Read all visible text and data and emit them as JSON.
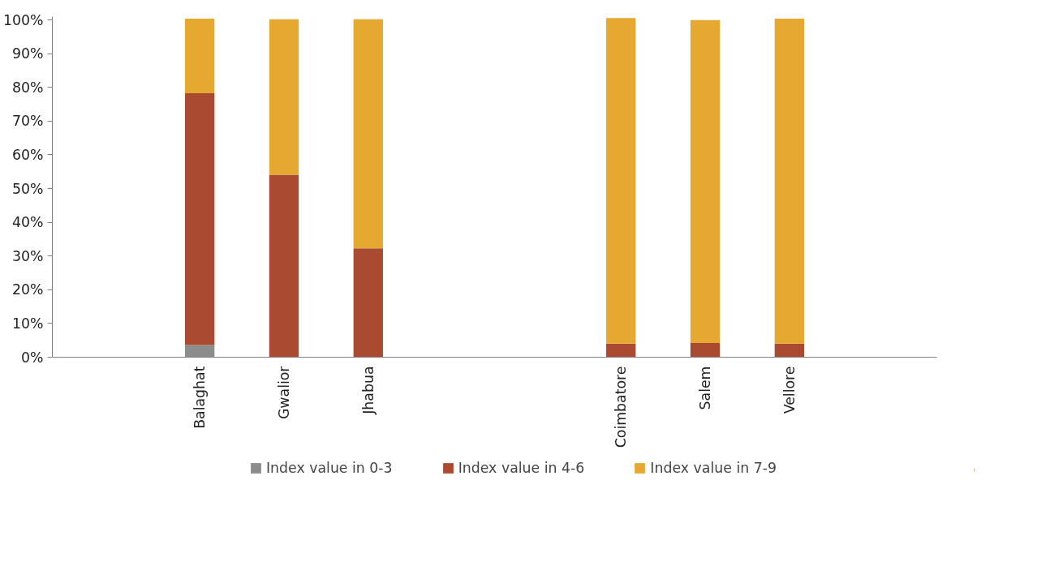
{
  "chart_data": {
    "type": "bar",
    "stacked": true,
    "categories": [
      null,
      null,
      null,
      "Balaghat",
      null,
      "Gwalior",
      null,
      "Jhabua",
      null,
      null,
      null,
      null,
      null,
      "Coimbatore",
      null,
      "Salem",
      null,
      "Vellore",
      null,
      null,
      null
    ],
    "series": [
      {
        "name": "Index value in 0-3",
        "color": "#8c8c8c",
        "values": [
          null,
          null,
          null,
          3.6,
          null,
          0,
          null,
          0,
          null,
          null,
          null,
          null,
          null,
          0,
          null,
          0,
          null,
          0,
          null,
          null,
          null
        ]
      },
      {
        "name": "Index value in 4-6",
        "color": "#a94b31",
        "values": [
          null,
          null,
          null,
          74.7,
          null,
          54.1,
          null,
          32.3,
          null,
          null,
          null,
          null,
          null,
          4.0,
          null,
          4.2,
          null,
          4.0,
          null,
          null,
          null
        ]
      },
      {
        "name": "Index value in 7-9",
        "color": "#e5a831",
        "values": [
          null,
          null,
          null,
          22.1,
          null,
          46.1,
          null,
          67.9,
          null,
          null,
          null,
          null,
          null,
          96.6,
          null,
          95.8,
          null,
          96.4,
          null,
          null,
          null
        ]
      }
    ],
    "ylim": [
      0,
      101
    ],
    "yticks": [
      {
        "value": 0,
        "label": "0%"
      },
      {
        "value": 10,
        "label": "10%"
      },
      {
        "value": 20,
        "label": "20%"
      },
      {
        "value": 30,
        "label": "30%"
      },
      {
        "value": 40,
        "label": "40%"
      },
      {
        "value": 50,
        "label": "50%"
      },
      {
        "value": 60,
        "label": "60%"
      },
      {
        "value": 70,
        "label": "70%"
      },
      {
        "value": 80,
        "label": "80%"
      },
      {
        "value": 90,
        "label": "90%"
      },
      {
        "value": 100,
        "label": "100%"
      }
    ],
    "grid": false,
    "legend": "bottom"
  }
}
